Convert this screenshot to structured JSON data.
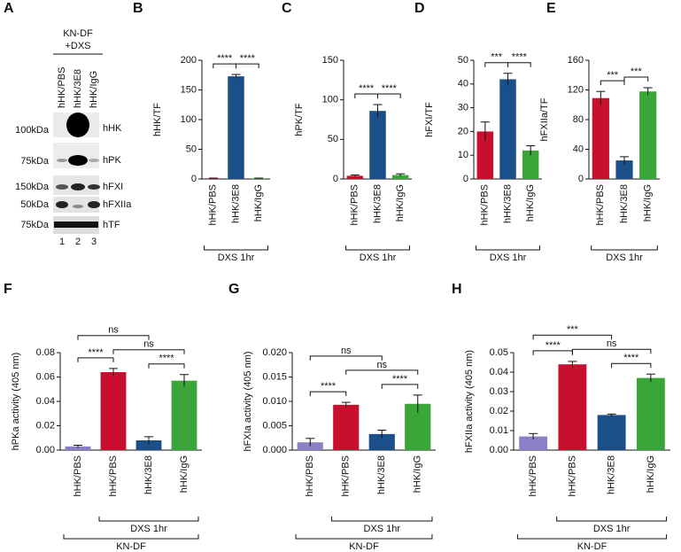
{
  "blot": {
    "panel": "A",
    "condition": [
      "KN-DF",
      "+DXS"
    ],
    "lanes": [
      "hHK/PBS",
      "hHK/3E8",
      "hHK/IgG"
    ],
    "lane_numbers": [
      "1",
      "2",
      "3"
    ],
    "rows": [
      {
        "marker": "100kDa",
        "protein": "hHK"
      },
      {
        "marker": "75kDa",
        "protein": "hPK"
      },
      {
        "marker": "150kDa",
        "protein": "hFXI"
      },
      {
        "marker": "50kDa",
        "protein": "hFXIIa"
      },
      {
        "marker": "75kDa",
        "protein": "hTF"
      }
    ]
  },
  "chart_data": [
    {
      "type": "bar",
      "panel": "B",
      "ylabel": "hHK/TF",
      "categories": [
        "hHK/PBS",
        "hHK/3E8",
        "hHK/IgG"
      ],
      "values": [
        1,
        173,
        1
      ],
      "errors": [
        0.5,
        3,
        0.5
      ],
      "colors": [
        "#c8102e",
        "#1a4f8a",
        "#3aa63a"
      ],
      "ylim": [
        0,
        200
      ],
      "yticks": [
        0,
        50,
        100,
        150,
        200
      ],
      "significance": [
        {
          "from": 0,
          "to": 1,
          "label": "****"
        },
        {
          "from": 1,
          "to": 2,
          "label": "****"
        }
      ],
      "groups": [
        {
          "from": 0,
          "to": 2,
          "label": "DXS 1hr"
        }
      ]
    },
    {
      "type": "bar",
      "panel": "C",
      "ylabel": "hPK/TF",
      "categories": [
        "hHK/PBS",
        "hHK/3E8",
        "hHK/IgG"
      ],
      "values": [
        4,
        86,
        5
      ],
      "errors": [
        1,
        8,
        1.5
      ],
      "colors": [
        "#c8102e",
        "#1a4f8a",
        "#3aa63a"
      ],
      "ylim": [
        0,
        150
      ],
      "yticks": [
        0,
        50,
        100,
        150
      ],
      "significance": [
        {
          "from": 0,
          "to": 1,
          "label": "****"
        },
        {
          "from": 1,
          "to": 2,
          "label": "****"
        }
      ],
      "groups": [
        {
          "from": 0,
          "to": 2,
          "label": "DXS 1hr"
        }
      ]
    },
    {
      "type": "bar",
      "panel": "D",
      "ylabel": "hFXI/TF",
      "categories": [
        "hHK/PBS",
        "hHK/3E8",
        "hHK/IgG"
      ],
      "values": [
        20,
        42,
        12
      ],
      "errors": [
        4,
        2.5,
        2
      ],
      "colors": [
        "#c8102e",
        "#1a4f8a",
        "#3aa63a"
      ],
      "ylim": [
        0,
        50
      ],
      "yticks": [
        0,
        10,
        20,
        30,
        40,
        50
      ],
      "significance": [
        {
          "from": 0,
          "to": 1,
          "label": "***"
        },
        {
          "from": 1,
          "to": 2,
          "label": "****"
        }
      ],
      "groups": [
        {
          "from": 0,
          "to": 2,
          "label": "DXS 1hr"
        }
      ]
    },
    {
      "type": "bar",
      "panel": "E",
      "ylabel": "hFXIIa/TF",
      "categories": [
        "hHK/PBS",
        "hHK/3E8",
        "hHK/IgG"
      ],
      "values": [
        109,
        25,
        118
      ],
      "errors": [
        9,
        5,
        5
      ],
      "colors": [
        "#c8102e",
        "#1a4f8a",
        "#3aa63a"
      ],
      "ylim": [
        0,
        160
      ],
      "yticks": [
        0,
        40,
        80,
        120,
        160
      ],
      "significance": [
        {
          "from": 0,
          "to": 1,
          "label": "***"
        },
        {
          "from": 1,
          "to": 2,
          "label": "***"
        }
      ],
      "groups": [
        {
          "from": 0,
          "to": 2,
          "label": "DXS 1hr"
        }
      ]
    },
    {
      "type": "bar",
      "panel": "F",
      "ylabel": "hPKa activity (405 nm)",
      "categories": [
        "hHK/PBS",
        "hHK/PBS",
        "hHK/3E8",
        "hHK/IgG"
      ],
      "values": [
        0.003,
        0.064,
        0.008,
        0.057
      ],
      "errors": [
        0.001,
        0.003,
        0.003,
        0.005
      ],
      "colors": [
        "#8b7fc7",
        "#c8102e",
        "#1a4f8a",
        "#3aa63a"
      ],
      "ylim": [
        0,
        0.08
      ],
      "yticks": [
        {
          "value": 0,
          "label": "0.00"
        },
        0.02,
        0.04,
        0.06,
        {
          "value": 0.08,
          "label": "0.08"
        }
      ],
      "significance": [
        {
          "from": 0,
          "to": 1,
          "label": "****"
        },
        {
          "from": 2,
          "to": 3,
          "label": "****"
        },
        {
          "from": 1,
          "to": 3,
          "label": "ns"
        },
        {
          "from": 0,
          "to": 2,
          "label": "ns"
        }
      ],
      "groups": [
        {
          "from": 1,
          "to": 3,
          "label": "DXS 1hr"
        },
        {
          "from": 0,
          "to": 3,
          "label": "KN-DF"
        }
      ]
    },
    {
      "type": "bar",
      "panel": "G",
      "ylabel": "hFXIa activity (405 nm)",
      "categories": [
        "hHK/PBS",
        "hHK/PBS",
        "hHK/3E8",
        "hHK/IgG"
      ],
      "values": [
        0.0016,
        0.0093,
        0.0033,
        0.0095
      ],
      "errors": [
        0.0008,
        0.0005,
        0.0008,
        0.0018
      ],
      "colors": [
        "#8b7fc7",
        "#c8102e",
        "#1a4f8a",
        "#3aa63a"
      ],
      "ylim": [
        0,
        0.02
      ],
      "yticks": [
        {
          "value": 0,
          "label": "0.000"
        },
        0.005,
        {
          "value": 0.01,
          "label": "0.010"
        },
        0.015,
        {
          "value": 0.02,
          "label": "0.020"
        }
      ],
      "significance": [
        {
          "from": 0,
          "to": 1,
          "label": "****"
        },
        {
          "from": 2,
          "to": 3,
          "label": "****"
        },
        {
          "from": 1,
          "to": 3,
          "label": "ns"
        },
        {
          "from": 0,
          "to": 2,
          "label": "ns"
        }
      ],
      "groups": [
        {
          "from": 1,
          "to": 3,
          "label": "DXS 1hr"
        },
        {
          "from": 0,
          "to": 3,
          "label": "KN-DF"
        }
      ]
    },
    {
      "type": "bar",
      "panel": "H",
      "ylabel": "hFXIIa activity (405 nm)",
      "categories": [
        "hHK/PBS",
        "hHK/PBS",
        "hHK/3E8",
        "hHK/IgG"
      ],
      "values": [
        0.007,
        0.044,
        0.018,
        0.037
      ],
      "errors": [
        0.0015,
        0.0015,
        0.0005,
        0.002
      ],
      "colors": [
        "#8b7fc7",
        "#c8102e",
        "#1a4f8a",
        "#3aa63a"
      ],
      "ylim": [
        0,
        0.05
      ],
      "yticks": [
        {
          "value": 0,
          "label": "0.00"
        },
        0.01,
        0.02,
        0.03,
        0.04,
        0.05
      ],
      "significance": [
        {
          "from": 0,
          "to": 1,
          "label": "****"
        },
        {
          "from": 2,
          "to": 3,
          "label": "****"
        },
        {
          "from": 1,
          "to": 3,
          "label": "ns"
        },
        {
          "from": 0,
          "to": 2,
          "label": "***"
        }
      ],
      "groups": [
        {
          "from": 1,
          "to": 3,
          "label": "DXS 1hr"
        },
        {
          "from": 0,
          "to": 3,
          "label": "KN-DF"
        }
      ]
    }
  ]
}
